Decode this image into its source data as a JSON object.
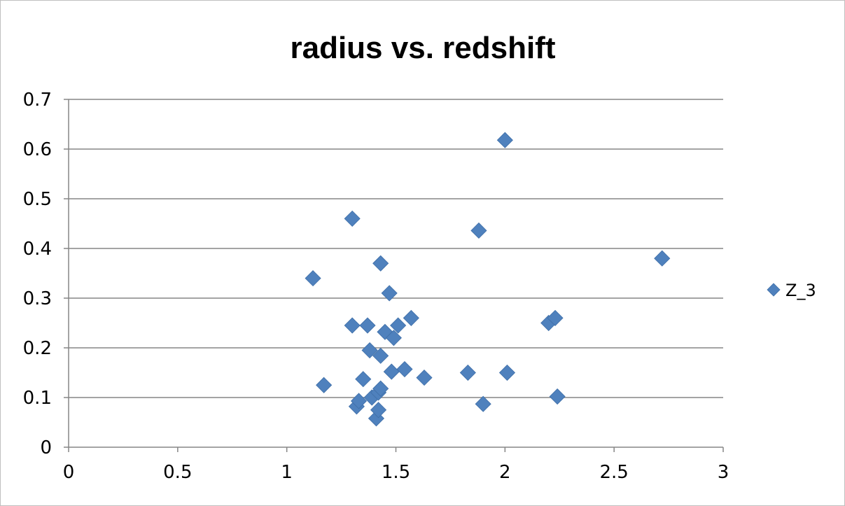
{
  "chart_data": {
    "type": "scatter",
    "title": "radius vs. redshift",
    "xlabel": "",
    "ylabel": "",
    "xlim": [
      0,
      3
    ],
    "ylim": [
      0,
      0.7
    ],
    "x_ticks": [
      0,
      0.5,
      1,
      1.5,
      2,
      2.5,
      3
    ],
    "x_tick_labels": [
      "0",
      "0.5",
      "1",
      "1.5",
      "2",
      "2.5",
      "3"
    ],
    "y_ticks": [
      0,
      0.1,
      0.2,
      0.3,
      0.4,
      0.5,
      0.6,
      0.7
    ],
    "y_tick_labels": [
      "0",
      "0.1",
      "0.2",
      "0.3",
      "0.4",
      "0.5",
      "0.6",
      "0.7"
    ],
    "grid": "horizontal",
    "legend_position": "right",
    "marker": "diamond",
    "series": [
      {
        "name": "Z_3",
        "color": "#4F81BD",
        "points": [
          {
            "x": 1.12,
            "y": 0.34
          },
          {
            "x": 1.17,
            "y": 0.125
          },
          {
            "x": 1.3,
            "y": 0.46
          },
          {
            "x": 1.3,
            "y": 0.245
          },
          {
            "x": 1.32,
            "y": 0.082
          },
          {
            "x": 1.33,
            "y": 0.093
          },
          {
            "x": 1.35,
            "y": 0.137
          },
          {
            "x": 1.37,
            "y": 0.245
          },
          {
            "x": 1.38,
            "y": 0.195
          },
          {
            "x": 1.39,
            "y": 0.1
          },
          {
            "x": 1.41,
            "y": 0.058
          },
          {
            "x": 1.42,
            "y": 0.11
          },
          {
            "x": 1.42,
            "y": 0.075
          },
          {
            "x": 1.43,
            "y": 0.118
          },
          {
            "x": 1.43,
            "y": 0.37
          },
          {
            "x": 1.43,
            "y": 0.184
          },
          {
            "x": 1.45,
            "y": 0.232
          },
          {
            "x": 1.47,
            "y": 0.31
          },
          {
            "x": 1.48,
            "y": 0.152
          },
          {
            "x": 1.49,
            "y": 0.22
          },
          {
            "x": 1.51,
            "y": 0.245
          },
          {
            "x": 1.54,
            "y": 0.157
          },
          {
            "x": 1.57,
            "y": 0.26
          },
          {
            "x": 1.63,
            "y": 0.14
          },
          {
            "x": 1.83,
            "y": 0.15
          },
          {
            "x": 1.88,
            "y": 0.436
          },
          {
            "x": 1.9,
            "y": 0.087
          },
          {
            "x": 2.0,
            "y": 0.618
          },
          {
            "x": 2.01,
            "y": 0.15
          },
          {
            "x": 2.2,
            "y": 0.25
          },
          {
            "x": 2.23,
            "y": 0.26
          },
          {
            "x": 2.24,
            "y": 0.102
          },
          {
            "x": 2.72,
            "y": 0.38
          }
        ]
      }
    ]
  }
}
